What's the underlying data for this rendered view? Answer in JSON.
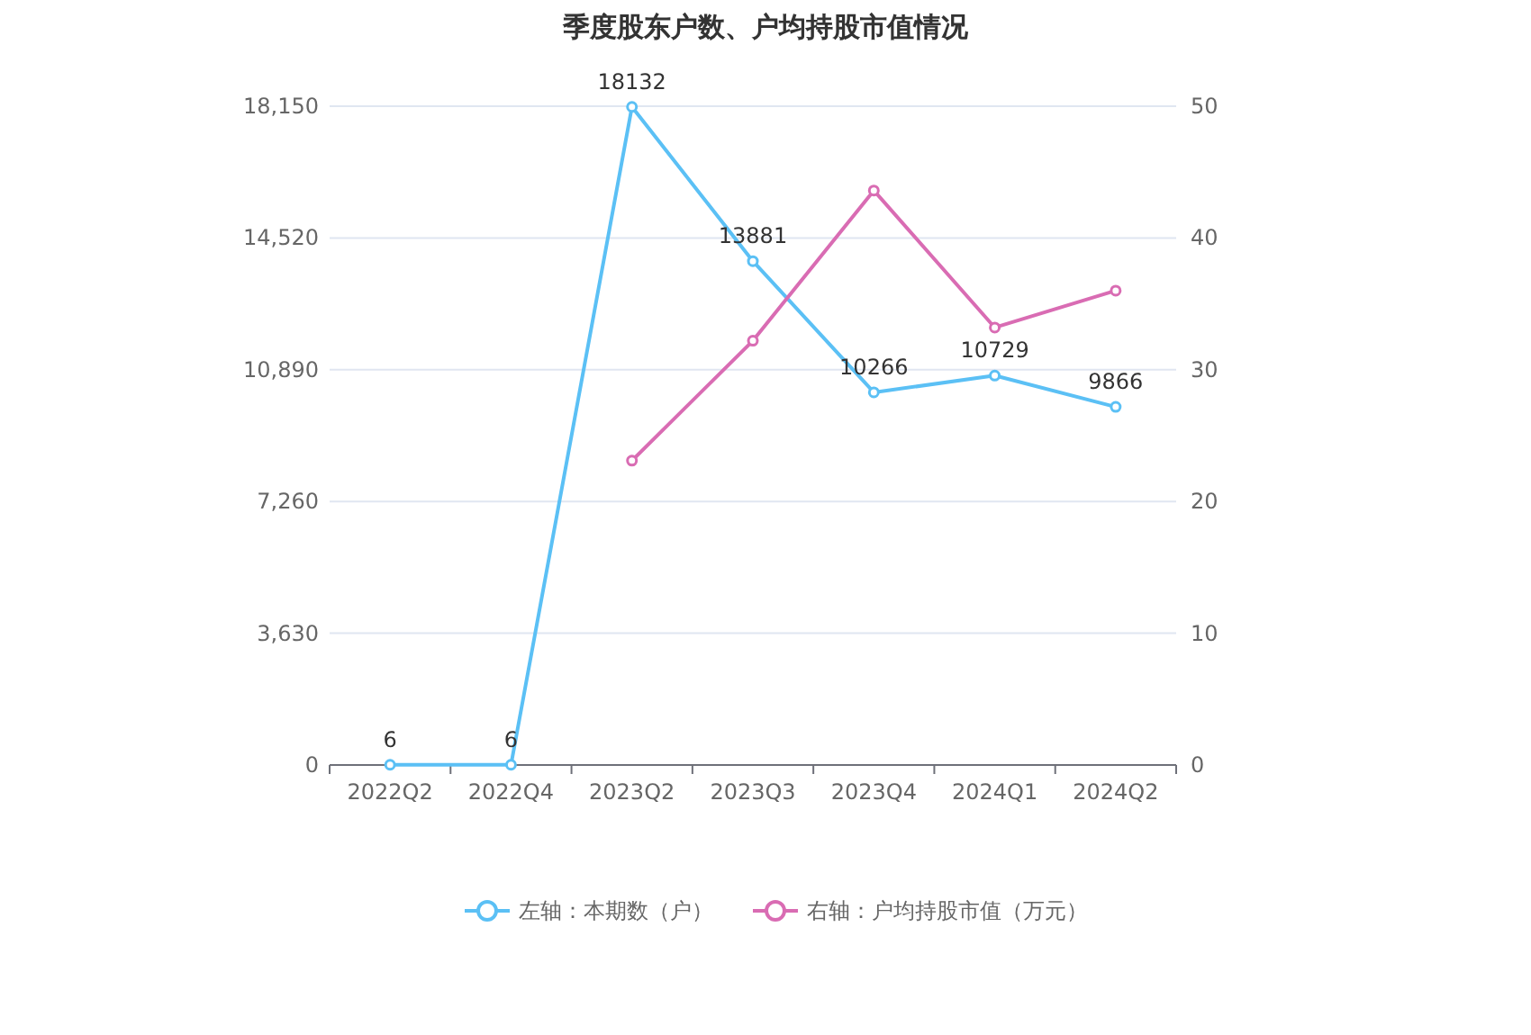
{
  "chart_data": {
    "type": "line",
    "title": "季度股东户数、户均持股市值情况",
    "categories": [
      "2022Q2",
      "2022Q4",
      "2023Q2",
      "2023Q3",
      "2023Q4",
      "2024Q1",
      "2024Q2"
    ],
    "series": [
      {
        "name": "左轴：本期数（户）",
        "color": "#5bc0f5",
        "values": [
          6,
          6,
          18132,
          13881,
          10266,
          10729,
          9866
        ],
        "value_labels": [
          "6",
          "6",
          "18132",
          "13881",
          "10266",
          "10729",
          "9866"
        ]
      },
      {
        "name": "右轴：户均持股市值（万元）",
        "color": "#d96cb3",
        "axis": "y2",
        "values": [
          null,
          null,
          23.1,
          32.2,
          43.6,
          33.2,
          36.0
        ]
      }
    ],
    "ylim": [
      0,
      18150
    ],
    "yticks": [
      0,
      {
        "value": 3630,
        "label": "3,630"
      },
      {
        "value": 7260,
        "label": "7,260"
      },
      {
        "value": 10890,
        "label": "10,890"
      },
      {
        "value": 14520,
        "label": "14,520"
      },
      {
        "value": 18150,
        "label": "18,150"
      }
    ],
    "y2lim": [
      0,
      50
    ],
    "y2ticks": [
      0,
      10,
      20,
      30,
      40,
      50
    ],
    "grid": "y",
    "legend": "bottom",
    "marker": "circle",
    "line_style": "solid"
  }
}
